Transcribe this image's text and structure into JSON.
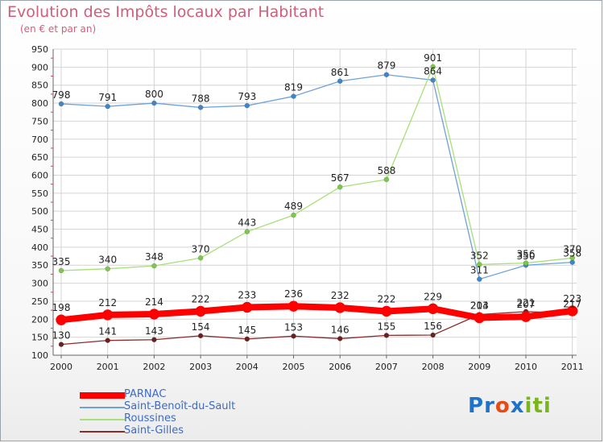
{
  "title": "Evolution des Impôts locaux par Habitant",
  "subtitle": "(en € et par an)",
  "brand": {
    "text": "Proxiti",
    "colors": [
      "#1e73c8",
      "#1e73c8",
      "#e84a14",
      "#1e73c8",
      "#79b51c",
      "#79b51c",
      "#79b51c"
    ]
  },
  "chart_data": {
    "type": "line",
    "title": "Evolution des Impôts locaux par Habitant",
    "subtitle": "(en € et par an)",
    "x": [
      "2000",
      "2001",
      "2002",
      "2003",
      "2004",
      "2005",
      "2006",
      "2007",
      "2008",
      "2009",
      "2010",
      "2011"
    ],
    "y_ticks": [
      100,
      150,
      200,
      250,
      300,
      350,
      400,
      450,
      500,
      550,
      600,
      650,
      700,
      750,
      800,
      850,
      900,
      950
    ],
    "ylim": [
      100,
      950
    ],
    "grid": true,
    "legend_position": "bottom-left",
    "series": [
      {
        "name": "Saint-Benoît-du-Sault",
        "color": "#6ea2da",
        "marker": "#3f86c9",
        "width": 1.3,
        "values": [
          798,
          791,
          800,
          788,
          793,
          819,
          861,
          879,
          864,
          311,
          350,
          358
        ]
      },
      {
        "name": "Roussines",
        "color": "#a8e07a",
        "marker": "#7cc84a",
        "width": 1.3,
        "values": [
          335,
          340,
          348,
          370,
          443,
          489,
          567,
          588,
          901,
          352,
          356,
          370
        ]
      },
      {
        "name": "Saint-Gilles",
        "color": "#8b2b2b",
        "marker": "#6b1f1f",
        "width": 1.3,
        "values": [
          130,
          141,
          143,
          154,
          145,
          153,
          146,
          155,
          156,
          213,
          221,
          217
        ]
      },
      {
        "name": "PARNAC",
        "color": "#ff0000",
        "marker": "#ff0000",
        "width": 8,
        "values": [
          198,
          212,
          214,
          222,
          233,
          236,
          232,
          222,
          229,
          204,
          207,
          223
        ]
      }
    ],
    "data_labels": [
      {
        "series": "Saint-Benoît-du-Sault",
        "labels": [
          "798",
          "791",
          "800",
          "788",
          "793",
          "819",
          "861",
          "879",
          "864",
          "311",
          "350",
          "358"
        ]
      },
      {
        "series": "Roussines",
        "labels": [
          "335",
          "340",
          "348",
          "370",
          "443",
          "489",
          "567",
          "588",
          "901",
          "352",
          "356",
          "370"
        ]
      },
      {
        "series": "Saint-Gilles",
        "labels": [
          "130",
          "141",
          "143",
          "154",
          "145",
          "153",
          "146",
          "155",
          "156",
          "213",
          "221",
          "217"
        ]
      },
      {
        "series": "PARNAC",
        "labels": [
          "198",
          "212",
          "214",
          "222",
          "233",
          "236",
          "232",
          "222",
          "229",
          "204",
          "207",
          "223"
        ]
      }
    ]
  },
  "legend": [
    {
      "label": "PARNAC",
      "color": "#ff0000",
      "thickness": 8
    },
    {
      "label": "Saint-Benoît-du-Sault",
      "color": "#6ea2da",
      "thickness": 2
    },
    {
      "label": "Roussines",
      "color": "#a8e07a",
      "thickness": 2
    },
    {
      "label": "Saint-Gilles",
      "color": "#8b2b2b",
      "thickness": 2
    }
  ]
}
